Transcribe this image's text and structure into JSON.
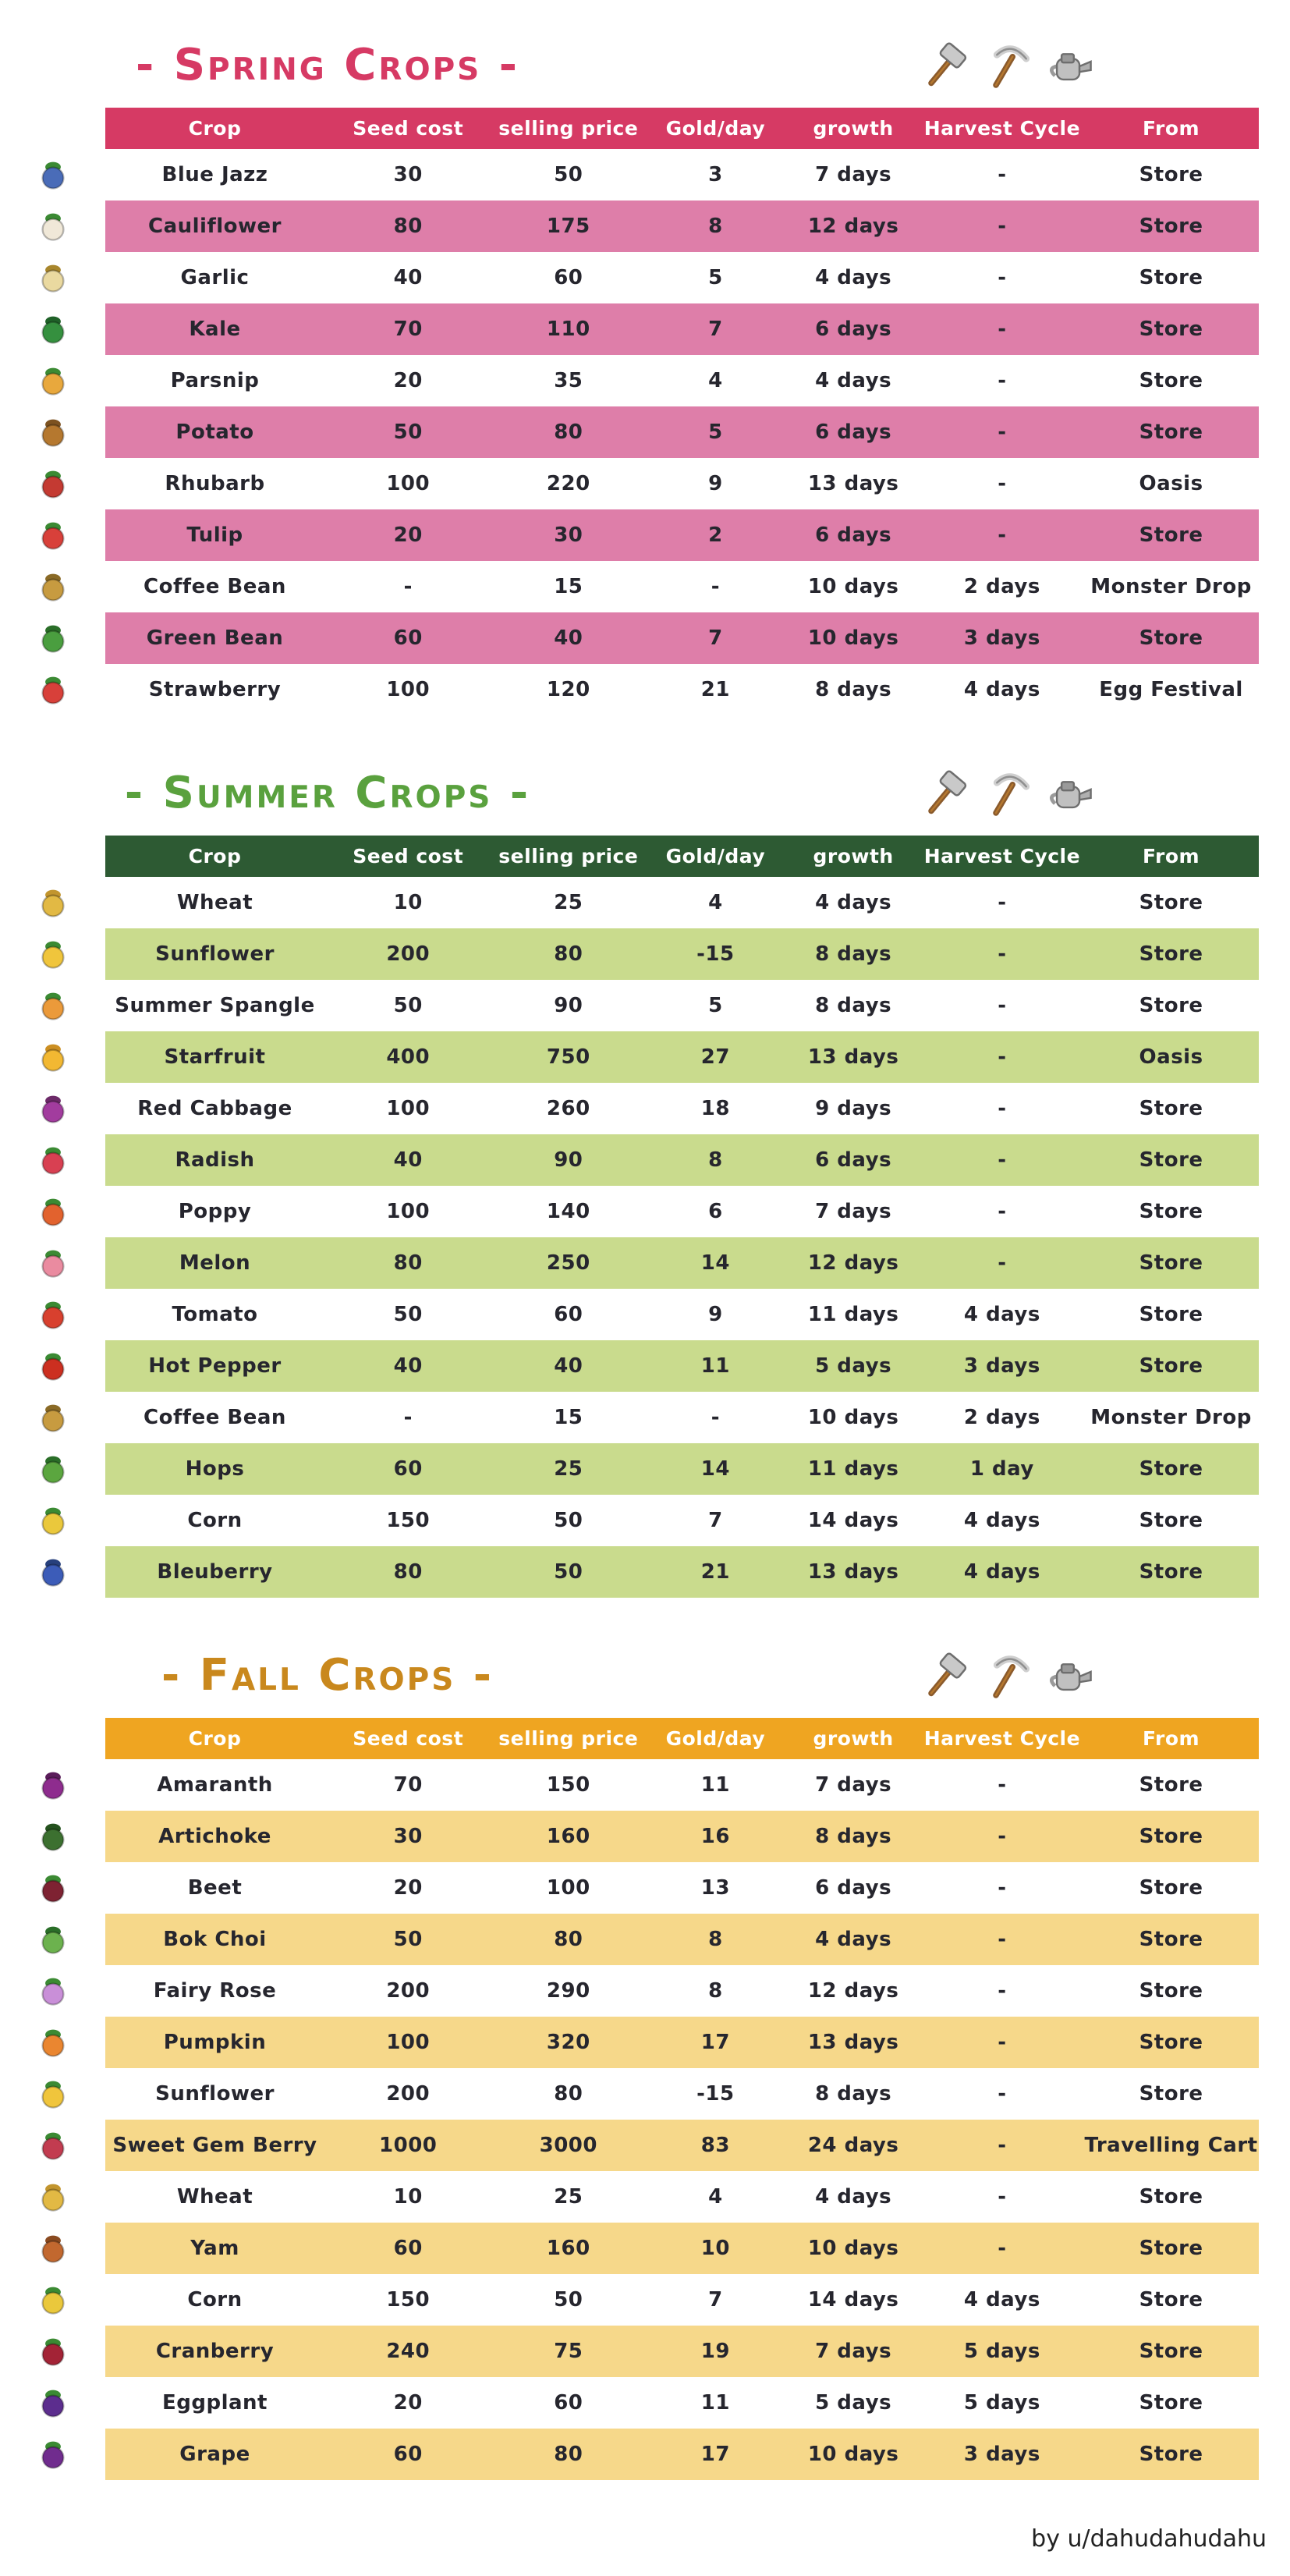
{
  "page": {
    "footer": "by u/dahudahudahu"
  },
  "columns": [
    {
      "key": "crop",
      "label": "Crop"
    },
    {
      "key": "seed_cost",
      "label": "Seed cost"
    },
    {
      "key": "selling_price",
      "label": "selling price"
    },
    {
      "key": "gold_per_day",
      "label": "Gold/day"
    },
    {
      "key": "growth",
      "label": "growth"
    },
    {
      "key": "harvest_cycle",
      "label": "Harvest Cycle"
    },
    {
      "key": "from",
      "label": "From"
    }
  ],
  "tools": [
    {
      "name": "hammer-icon"
    },
    {
      "name": "pickaxe-icon"
    },
    {
      "name": "watering-can-icon"
    }
  ],
  "seasons": [
    {
      "id": "spring",
      "title": "- Spring Crops -",
      "colors": {
        "title": "#d63a64",
        "header_bg": "#d63a64",
        "header_text": "#ffffff",
        "row_bg": "#ffffff",
        "alt_row_bg": "#de7ea9"
      },
      "rows": [
        {
          "crop": "Blue Jazz",
          "seed_cost": "30",
          "selling_price": "50",
          "gold_per_day": "3",
          "growth": "7 days",
          "harvest_cycle": "-",
          "from": "Store",
          "icon": {
            "name": "blue-jazz-icon",
            "body": "#4a6cb8",
            "leaf": "#3b8a33"
          }
        },
        {
          "crop": "Cauliflower",
          "seed_cost": "80",
          "selling_price": "175",
          "gold_per_day": "8",
          "growth": "12 days",
          "harvest_cycle": "-",
          "from": "Store",
          "icon": {
            "name": "cauliflower-icon",
            "body": "#f0e8d8",
            "leaf": "#3b8a33"
          }
        },
        {
          "crop": "Garlic",
          "seed_cost": "40",
          "selling_price": "60",
          "gold_per_day": "5",
          "growth": "4 days",
          "harvest_cycle": "-",
          "from": "Store",
          "icon": {
            "name": "garlic-icon",
            "body": "#ead9a0",
            "leaf": "#a8862c"
          }
        },
        {
          "crop": "Kale",
          "seed_cost": "70",
          "selling_price": "110",
          "gold_per_day": "7",
          "growth": "6 days",
          "harvest_cycle": "-",
          "from": "Store",
          "icon": {
            "name": "kale-icon",
            "body": "#35903f",
            "leaf": "#1f6128"
          }
        },
        {
          "crop": "Parsnip",
          "seed_cost": "20",
          "selling_price": "35",
          "gold_per_day": "4",
          "growth": "4 days",
          "harvest_cycle": "-",
          "from": "Store",
          "icon": {
            "name": "parsnip-icon",
            "body": "#e8a83d",
            "leaf": "#3b8a33"
          }
        },
        {
          "crop": "Potato",
          "seed_cost": "50",
          "selling_price": "80",
          "gold_per_day": "5",
          "growth": "6 days",
          "harvest_cycle": "-",
          "from": "Store",
          "icon": {
            "name": "potato-icon",
            "body": "#b5782f",
            "leaf": "#7d5220"
          }
        },
        {
          "crop": "Rhubarb",
          "seed_cost": "100",
          "selling_price": "220",
          "gold_per_day": "9",
          "growth": "13 days",
          "harvest_cycle": "-",
          "from": "Oasis",
          "icon": {
            "name": "rhubarb-icon",
            "body": "#c43a32",
            "leaf": "#3b8a33"
          }
        },
        {
          "crop": "Tulip",
          "seed_cost": "20",
          "selling_price": "30",
          "gold_per_day": "2",
          "growth": "6 days",
          "harvest_cycle": "-",
          "from": "Store",
          "icon": {
            "name": "tulip-icon",
            "body": "#d8403a",
            "leaf": "#3b8a33"
          }
        },
        {
          "crop": "Coffee Bean",
          "seed_cost": "-",
          "selling_price": "15",
          "gold_per_day": "-",
          "growth": "10 days",
          "harvest_cycle": "2 days",
          "from": "Monster Drop",
          "icon": {
            "name": "coffee-bean-icon",
            "body": "#c79b40",
            "leaf": "#8a6a26"
          }
        },
        {
          "crop": "Green Bean",
          "seed_cost": "60",
          "selling_price": "40",
          "gold_per_day": "7",
          "growth": "10 days",
          "harvest_cycle": "3 days",
          "from": "Store",
          "icon": {
            "name": "green-bean-icon",
            "body": "#4a9e3f",
            "leaf": "#2a6e28"
          }
        },
        {
          "crop": "Strawberry",
          "seed_cost": "100",
          "selling_price": "120",
          "gold_per_day": "21",
          "growth": "8 days",
          "harvest_cycle": "4 days",
          "from": "Egg Festival",
          "icon": {
            "name": "strawberry-icon",
            "body": "#d8403a",
            "leaf": "#3b8a33"
          }
        }
      ]
    },
    {
      "id": "summer",
      "title": "- Summer Crops -",
      "colors": {
        "title": "#5aa13e",
        "header_bg": "#2d5a33",
        "header_text": "#ffffff",
        "row_bg": "#ffffff",
        "alt_row_bg": "#c9db8d"
      },
      "rows": [
        {
          "crop": "Wheat",
          "seed_cost": "10",
          "selling_price": "25",
          "gold_per_day": "4",
          "growth": "4 days",
          "harvest_cycle": "-",
          "from": "Store",
          "icon": {
            "name": "wheat-icon",
            "body": "#e2b944",
            "leaf": "#c2952e"
          }
        },
        {
          "crop": "Sunflower",
          "seed_cost": "200",
          "selling_price": "80",
          "gold_per_day": "-15",
          "growth": "8 days",
          "harvest_cycle": "-",
          "from": "Store",
          "icon": {
            "name": "sunflower-icon",
            "body": "#f0c53c",
            "leaf": "#3b8a33"
          }
        },
        {
          "crop": "Summer Spangle",
          "seed_cost": "50",
          "selling_price": "90",
          "gold_per_day": "5",
          "growth": "8 days",
          "harvest_cycle": "-",
          "from": "Store",
          "icon": {
            "name": "summer-spangle-icon",
            "body": "#eb9a3a",
            "leaf": "#3b8a33"
          }
        },
        {
          "crop": "Starfruit",
          "seed_cost": "400",
          "selling_price": "750",
          "gold_per_day": "27",
          "growth": "13 days",
          "harvest_cycle": "-",
          "from": "Oasis",
          "icon": {
            "name": "starfruit-icon",
            "body": "#f2b832",
            "leaf": "#cc8f22"
          }
        },
        {
          "crop": "Red Cabbage",
          "seed_cost": "100",
          "selling_price": "260",
          "gold_per_day": "18",
          "growth": "9 days",
          "harvest_cycle": "-",
          "from": "Store",
          "icon": {
            "name": "red-cabbage-icon",
            "body": "#a23c9e",
            "leaf": "#6c2a68"
          }
        },
        {
          "crop": "Radish",
          "seed_cost": "40",
          "selling_price": "90",
          "gold_per_day": "8",
          "growth": "6 days",
          "harvest_cycle": "-",
          "from": "Store",
          "icon": {
            "name": "radish-icon",
            "body": "#d84052",
            "leaf": "#3b8a33"
          }
        },
        {
          "crop": "Poppy",
          "seed_cost": "100",
          "selling_price": "140",
          "gold_per_day": "6",
          "growth": "7 days",
          "harvest_cycle": "-",
          "from": "Store",
          "icon": {
            "name": "poppy-icon",
            "body": "#e2622e",
            "leaf": "#3b8a33"
          }
        },
        {
          "crop": "Melon",
          "seed_cost": "80",
          "selling_price": "250",
          "gold_per_day": "14",
          "growth": "12 days",
          "harvest_cycle": "-",
          "from": "Store",
          "icon": {
            "name": "melon-icon",
            "body": "#ea8ba0",
            "leaf": "#3b8a33"
          }
        },
        {
          "crop": "Tomato",
          "seed_cost": "50",
          "selling_price": "60",
          "gold_per_day": "9",
          "growth": "11 days",
          "harvest_cycle": "4 days",
          "from": "Store",
          "icon": {
            "name": "tomato-icon",
            "body": "#d8402e",
            "leaf": "#3b8a33"
          }
        },
        {
          "crop": "Hot Pepper",
          "seed_cost": "40",
          "selling_price": "40",
          "gold_per_day": "11",
          "growth": "5 days",
          "harvest_cycle": "3 days",
          "from": "Store",
          "icon": {
            "name": "hot-pepper-icon",
            "body": "#cc2f20",
            "leaf": "#3b8a33"
          }
        },
        {
          "crop": "Coffee Bean",
          "seed_cost": "-",
          "selling_price": "15",
          "gold_per_day": "-",
          "growth": "10 days",
          "harvest_cycle": "2 days",
          "from": "Monster Drop",
          "icon": {
            "name": "coffee-bean-icon",
            "body": "#c79b40",
            "leaf": "#8a6a26"
          }
        },
        {
          "crop": "Hops",
          "seed_cost": "60",
          "selling_price": "25",
          "gold_per_day": "14",
          "growth": "11 days",
          "harvest_cycle": "1 day",
          "from": "Store",
          "icon": {
            "name": "hops-icon",
            "body": "#5ba63f",
            "leaf": "#2a6e28"
          }
        },
        {
          "crop": "Corn",
          "seed_cost": "150",
          "selling_price": "50",
          "gold_per_day": "7",
          "growth": "14 days",
          "harvest_cycle": "4 days",
          "from": "Store",
          "icon": {
            "name": "corn-icon",
            "body": "#eac83c",
            "leaf": "#3b8a33"
          }
        },
        {
          "crop": "Bleuberry",
          "seed_cost": "80",
          "selling_price": "50",
          "gold_per_day": "21",
          "growth": "13 days",
          "harvest_cycle": "4 days",
          "from": "Store",
          "icon": {
            "name": "blueberry-icon",
            "body": "#3c5cb8",
            "leaf": "#27407d"
          }
        }
      ]
    },
    {
      "id": "fall",
      "title": "- Fall Crops -",
      "colors": {
        "title": "#c9881d",
        "header_bg": "#efa521",
        "header_text": "#ffffff",
        "row_bg": "#ffffff",
        "alt_row_bg": "#f6d88a"
      },
      "rows": [
        {
          "crop": "Amaranth",
          "seed_cost": "70",
          "selling_price": "150",
          "gold_per_day": "11",
          "growth": "7 days",
          "harvest_cycle": "-",
          "from": "Store",
          "icon": {
            "name": "amaranth-icon",
            "body": "#8e2c8e",
            "leaf": "#5a1c5a"
          }
        },
        {
          "crop": "Artichoke",
          "seed_cost": "30",
          "selling_price": "160",
          "gold_per_day": "16",
          "growth": "8 days",
          "harvest_cycle": "-",
          "from": "Store",
          "icon": {
            "name": "artichoke-icon",
            "body": "#3c7030",
            "leaf": "#24521e"
          }
        },
        {
          "crop": "Beet",
          "seed_cost": "20",
          "selling_price": "100",
          "gold_per_day": "13",
          "growth": "6 days",
          "harvest_cycle": "-",
          "from": "Store",
          "icon": {
            "name": "beet-icon",
            "body": "#7e2232",
            "leaf": "#3b8a33"
          }
        },
        {
          "crop": "Bok Choi",
          "seed_cost": "50",
          "selling_price": "80",
          "gold_per_day": "8",
          "growth": "4 days",
          "harvest_cycle": "-",
          "from": "Store",
          "icon": {
            "name": "bok-choi-icon",
            "body": "#6cb24e",
            "leaf": "#2a6e28"
          }
        },
        {
          "crop": "Fairy Rose",
          "seed_cost": "200",
          "selling_price": "290",
          "gold_per_day": "8",
          "growth": "12 days",
          "harvest_cycle": "-",
          "from": "Store",
          "icon": {
            "name": "fairy-rose-icon",
            "body": "#c98fd8",
            "leaf": "#3b8a33"
          }
        },
        {
          "crop": "Pumpkin",
          "seed_cost": "100",
          "selling_price": "320",
          "gold_per_day": "17",
          "growth": "13 days",
          "harvest_cycle": "-",
          "from": "Store",
          "icon": {
            "name": "pumpkin-icon",
            "body": "#ea8630",
            "leaf": "#3b8a33"
          }
        },
        {
          "crop": "Sunflower",
          "seed_cost": "200",
          "selling_price": "80",
          "gold_per_day": "-15",
          "growth": "8 days",
          "harvest_cycle": "-",
          "from": "Store",
          "icon": {
            "name": "sunflower-icon",
            "body": "#f0c53c",
            "leaf": "#3b8a33"
          }
        },
        {
          "crop": "Sweet Gem Berry",
          "seed_cost": "1000",
          "selling_price": "3000",
          "gold_per_day": "83",
          "growth": "24 days",
          "harvest_cycle": "-",
          "from": "Travelling Cart",
          "icon": {
            "name": "sweet-gem-berry-icon",
            "body": "#c23c50",
            "leaf": "#3b8a33"
          }
        },
        {
          "crop": "Wheat",
          "seed_cost": "10",
          "selling_price": "25",
          "gold_per_day": "4",
          "growth": "4 days",
          "harvest_cycle": "-",
          "from": "Store",
          "icon": {
            "name": "wheat-icon",
            "body": "#e2b944",
            "leaf": "#c2952e"
          }
        },
        {
          "crop": "Yam",
          "seed_cost": "60",
          "selling_price": "160",
          "gold_per_day": "10",
          "growth": "10 days",
          "harvest_cycle": "-",
          "from": "Store",
          "icon": {
            "name": "yam-icon",
            "body": "#c2682f",
            "leaf": "#8a4a20"
          }
        },
        {
          "crop": "Corn",
          "seed_cost": "150",
          "selling_price": "50",
          "gold_per_day": "7",
          "growth": "14 days",
          "harvest_cycle": "4 days",
          "from": "Store",
          "icon": {
            "name": "corn-icon",
            "body": "#eac83c",
            "leaf": "#3b8a33"
          }
        },
        {
          "crop": "Cranberry",
          "seed_cost": "240",
          "selling_price": "75",
          "gold_per_day": "19",
          "growth": "7 days",
          "harvest_cycle": "5 days",
          "from": "Store",
          "icon": {
            "name": "cranberry-icon",
            "body": "#a32336",
            "leaf": "#3b8a33"
          }
        },
        {
          "crop": "Eggplant",
          "seed_cost": "20",
          "selling_price": "60",
          "gold_per_day": "11",
          "growth": "5 days",
          "harvest_cycle": "5 days",
          "from": "Store",
          "icon": {
            "name": "eggplant-icon",
            "body": "#5c2d8e",
            "leaf": "#3b8a33"
          }
        },
        {
          "crop": "Grape",
          "seed_cost": "60",
          "selling_price": "80",
          "gold_per_day": "17",
          "growth": "10 days",
          "harvest_cycle": "3 days",
          "from": "Store",
          "icon": {
            "name": "grape-icon",
            "body": "#702c8e",
            "leaf": "#3b8a33"
          }
        }
      ]
    }
  ]
}
